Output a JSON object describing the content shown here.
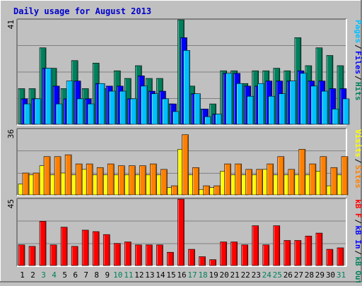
{
  "chart_data": [
    {
      "type": "bar",
      "title": "Daily usage for August 2013",
      "categories": [
        "1",
        "2",
        "3",
        "4",
        "5",
        "6",
        "7",
        "8",
        "9",
        "10",
        "11",
        "12",
        "13",
        "14",
        "15",
        "16",
        "17",
        "18",
        "19",
        "20",
        "21",
        "22",
        "23",
        "24",
        "25",
        "26",
        "27",
        "28",
        "29",
        "30",
        "31"
      ],
      "weekend_days": [
        "3",
        "4",
        "10",
        "11",
        "17",
        "18",
        "24",
        "25",
        "31"
      ],
      "ylabel_max": "41",
      "ylim": [
        0,
        41
      ],
      "right_labels": [
        "Pages",
        "Files",
        "Hits"
      ],
      "series": [
        {
          "name": "Hits",
          "values": [
            14,
            14,
            30,
            22,
            14,
            25,
            14,
            24,
            14,
            21,
            18,
            23,
            18,
            18,
            8,
            41,
            15,
            6,
            8,
            21,
            21,
            16,
            21,
            21,
            22,
            21,
            34,
            23,
            30,
            27,
            23
          ]
        },
        {
          "name": "Files",
          "values": [
            10,
            10,
            22,
            15,
            10,
            17,
            10,
            16,
            15,
            15,
            10,
            19,
            13,
            13,
            8,
            34,
            12,
            6,
            4,
            20,
            20,
            15,
            15,
            17,
            17,
            17,
            21,
            17,
            17,
            14,
            14
          ]
        },
        {
          "name": "Pages",
          "values": [
            8,
            10,
            22,
            8,
            17,
            10,
            8,
            16,
            13,
            13,
            10,
            15,
            12,
            10,
            5,
            29,
            12,
            3,
            4,
            20,
            16,
            11,
            16,
            11,
            12,
            17,
            20,
            15,
            13,
            6,
            10
          ]
        }
      ],
      "colors": {
        "Hits": "#00805c",
        "Files": "#0000ff",
        "Pages": "#00c0ff"
      }
    },
    {
      "type": "bar",
      "ylabel_max": "36",
      "ylim": [
        0,
        36
      ],
      "right_labels": [
        "Visits",
        "Sites"
      ],
      "series": [
        {
          "name": "Visits",
          "values": [
            6,
            11,
            16,
            11,
            12,
            11,
            14,
            11,
            11,
            11,
            11,
            11,
            11,
            11,
            4,
            25,
            11,
            3,
            4,
            13,
            11,
            11,
            11,
            14,
            11,
            11,
            11,
            11,
            13,
            5,
            11
          ]
        },
        {
          "name": "Sites",
          "values": [
            12,
            12,
            21,
            21,
            22,
            17,
            17,
            15,
            17,
            16,
            16,
            16,
            17,
            14,
            5,
            33,
            15,
            5,
            5,
            17,
            17,
            14,
            14,
            17,
            21,
            14,
            25,
            17,
            21,
            15,
            21
          ]
        }
      ],
      "colors": {
        "Visits": "#ffff00",
        "Sites": "#ff8000"
      }
    },
    {
      "type": "bar",
      "ylabel_max": "45",
      "ylim": [
        0,
        45
      ],
      "right_labels": [
        "kB F",
        "kB In",
        "kB Out"
      ],
      "series": [
        {
          "name": "kB F",
          "values": [
            14,
            13,
            30,
            14,
            26,
            13,
            24,
            23,
            21,
            15,
            16,
            14,
            14,
            14,
            9,
            45,
            11,
            6,
            4,
            16,
            16,
            14,
            27,
            14,
            27,
            17,
            17,
            20,
            22,
            11,
            12
          ]
        }
      ],
      "colors": {
        "kB F": "#ff0000"
      }
    }
  ]
}
